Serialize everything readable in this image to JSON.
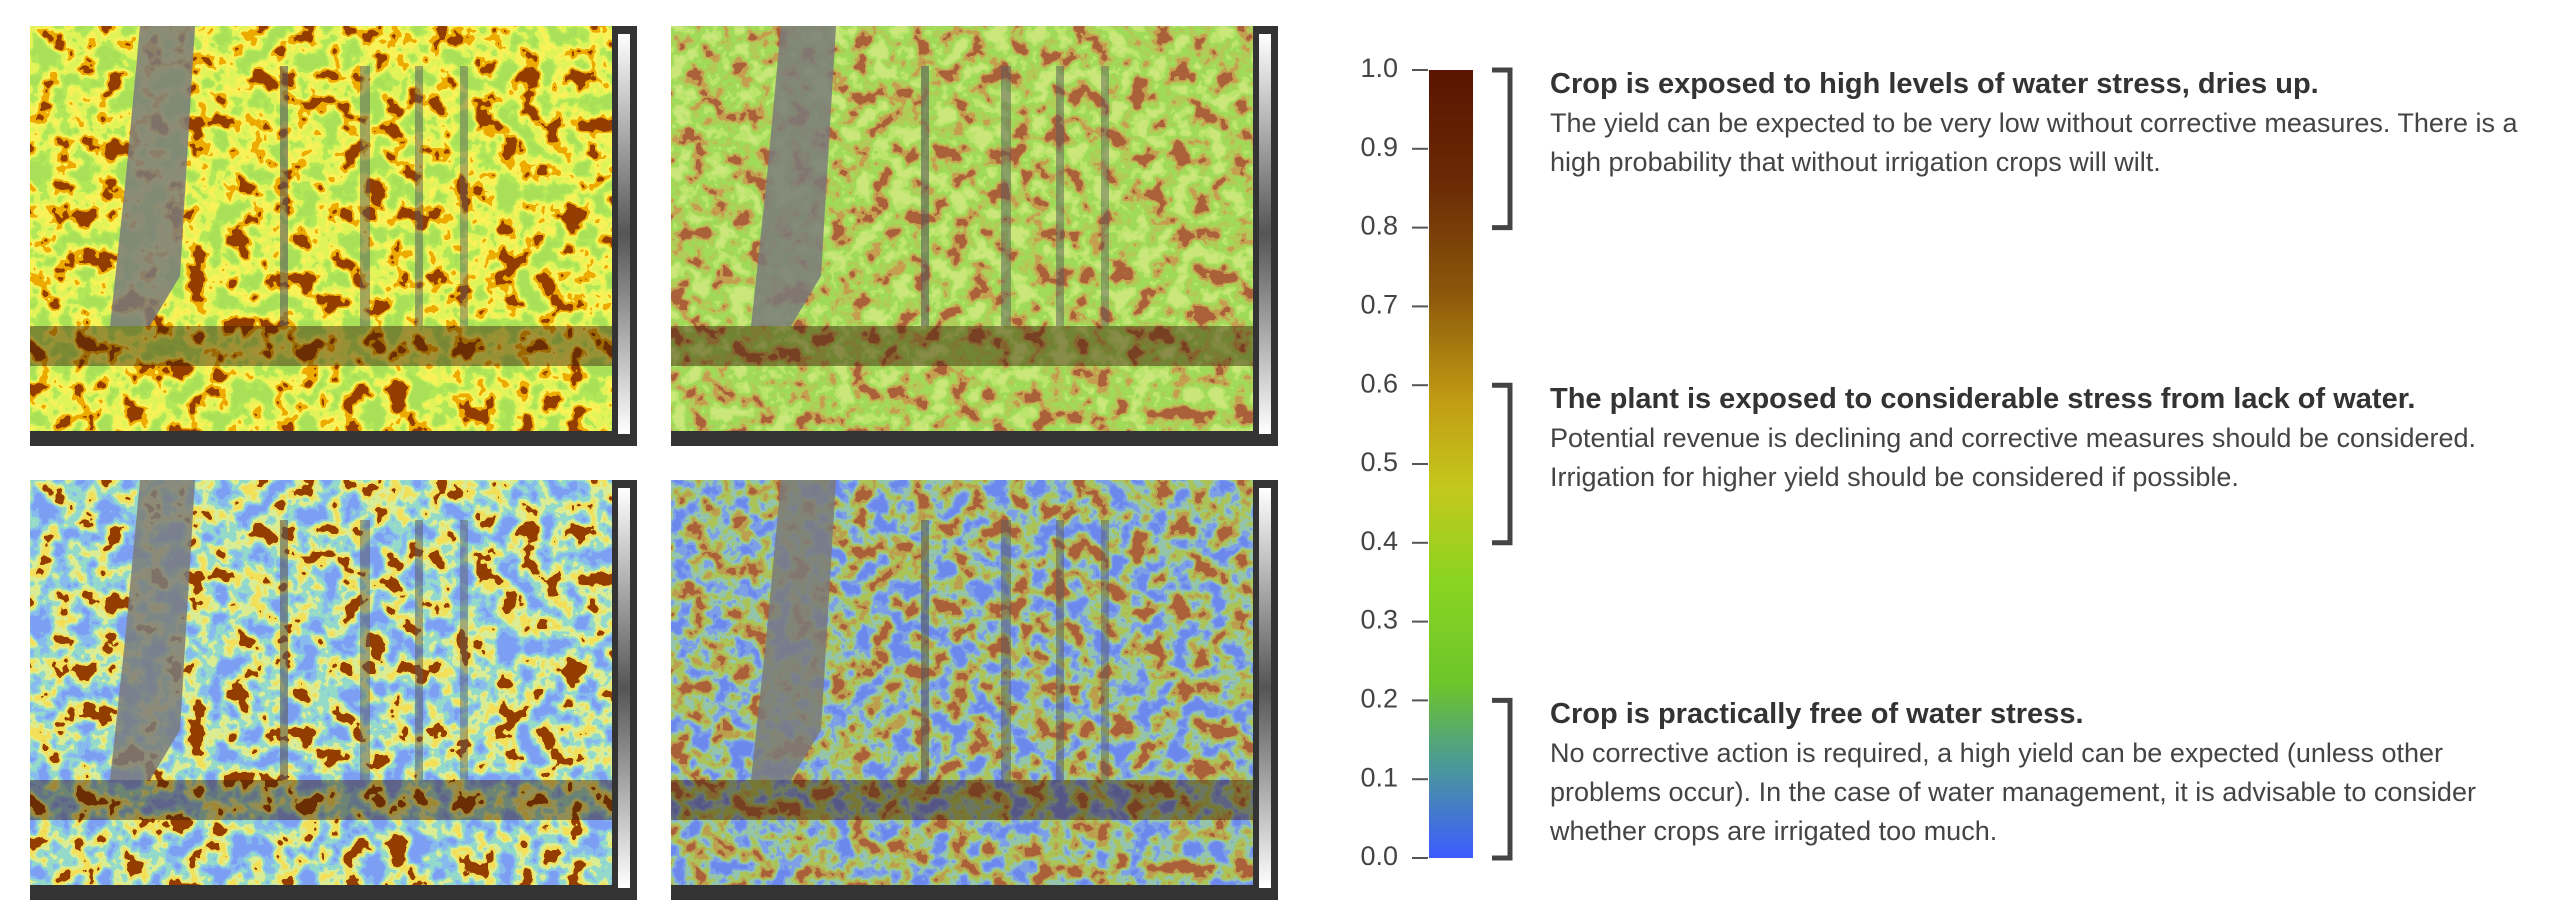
{
  "legend": {
    "lim": [
      0,
      1
    ],
    "ticks": [
      {
        "value": 0,
        "label": "0.0"
      },
      {
        "value": 0.1,
        "label": "0.1"
      },
      {
        "value": 0.2,
        "label": "0.2"
      },
      {
        "value": 0.3,
        "label": "0.3"
      },
      {
        "value": 0.4,
        "label": "0.4"
      },
      {
        "value": 0.5,
        "label": "0.5"
      },
      {
        "value": 0.6,
        "label": "0.6"
      },
      {
        "value": 0.7,
        "label": "0.7"
      },
      {
        "value": 0.8,
        "label": "0.8"
      },
      {
        "value": 0.9,
        "label": "0.9"
      },
      {
        "value": 1,
        "label": "1.0"
      }
    ],
    "zones": [
      {
        "range": [
          0.8,
          1
        ],
        "title": "Crop is exposed to high levels of water stress, dries up.",
        "text": "The yield can be expected to be very low without corrective measures. There is a high probability that without irrigation crops will wilt."
      },
      {
        "range": [
          0.4,
          0.6
        ],
        "title": "The plant is exposed to considerable stress from lack of water.",
        "text": "Potential revenue is declining and corrective measures should be considered. Irrigation for higher yield should be considered if possible."
      },
      {
        "range": [
          0,
          0.2
        ],
        "title": "Crop is practically free of water stress.",
        "text": "No corrective action is required, a high yield can be expected (unless other problems occur). In the case of water management, it is advisable to consider whether crops are irrigated too much."
      }
    ]
  }
}
